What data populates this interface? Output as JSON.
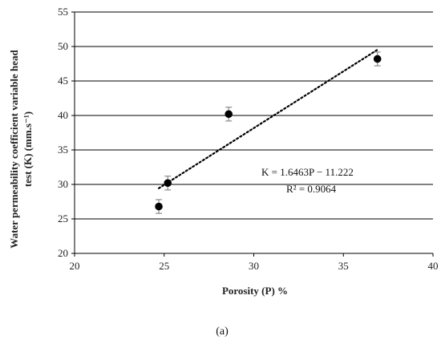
{
  "chart_data": {
    "type": "scatter",
    "xlabel": "Porosity (P) %",
    "ylabel_line1": "Water permeability coefficient    variable head",
    "ylabel_line2": "test  (K) (mm.s⁻¹)",
    "xlim": [
      20,
      40
    ],
    "ylim": [
      20,
      55
    ],
    "x_ticks": [
      20,
      25,
      30,
      35,
      40
    ],
    "y_ticks": [
      20,
      25,
      30,
      35,
      40,
      45,
      50,
      55
    ],
    "grid": "horizontal",
    "points": [
      {
        "x": 24.7,
        "y": 26.8,
        "err": 1.0
      },
      {
        "x": 25.2,
        "y": 30.2,
        "err": 1.0
      },
      {
        "x": 28.6,
        "y": 40.2,
        "err": 1.0
      },
      {
        "x": 36.9,
        "y": 48.2,
        "err": 1.0
      }
    ],
    "trendline": {
      "slope": 1.6463,
      "intercept": -11.222,
      "x_range": [
        24.7,
        36.9
      ],
      "equation": "K = 1.6463P − 11.222",
      "r2": "R² = 0.9064"
    },
    "caption": "(a)"
  },
  "colors": {
    "marker": "#000000",
    "errorbar": "#8c8c8c",
    "gridline": "#000000",
    "trendline": "#000000"
  }
}
